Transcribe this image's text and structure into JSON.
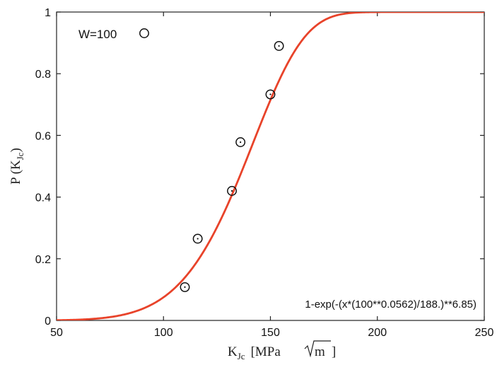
{
  "chart_data": {
    "type": "scatter",
    "title": "",
    "xlabel": {
      "main": "K",
      "sub": "Jc",
      "unit_prefix": "[MPa",
      "unit_root": "m",
      "unit_suffix": "]"
    },
    "ylabel": {
      "main": "P (K",
      "sub": "Jc",
      "suffix": ")"
    },
    "xlim": [
      50,
      250
    ],
    "ylim": [
      0,
      1
    ],
    "x_ticks": [
      "50",
      "100",
      "150",
      "200",
      "250"
    ],
    "y_ticks": [
      "0",
      "0.2",
      "0.4",
      "0.6",
      "0.8",
      "1"
    ],
    "grid": false,
    "legend": {
      "label": "W=100",
      "placement": "top-left"
    },
    "series": [
      {
        "name": "W=100",
        "marker": "circle-dot",
        "x": [
          110,
          116,
          132,
          136,
          150,
          154
        ],
        "y": [
          0.108,
          0.265,
          0.42,
          0.578,
          0.733,
          0.89
        ]
      }
    ],
    "fit": {
      "label": "1-exp(-(x*(100**0.0562)/188.)**6.85)",
      "W": 100,
      "exponent": 0.0562,
      "scale": 188.0,
      "shape": 6.85,
      "color": "#e8432a"
    },
    "colors": {
      "axis": "#222222",
      "marker": "#111111"
    }
  }
}
